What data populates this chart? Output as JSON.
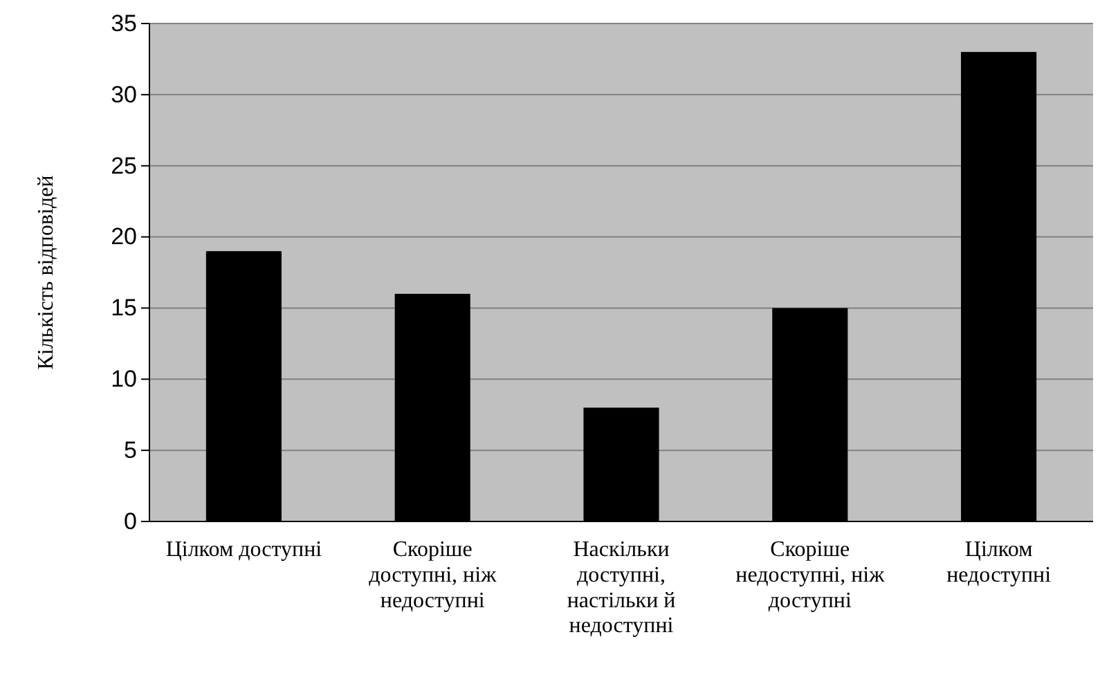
{
  "chart_data": {
    "type": "bar",
    "ylabel": "Кількість відповідей",
    "categories": [
      "Цілком доступні",
      "Скоріше доступні, ніж недоступні",
      "Наскільки доступні, настільки й недоступні",
      "Скоріше недоступні, ніж доступні",
      "Цілком недоступні"
    ],
    "values": [
      19,
      16,
      8,
      15,
      33
    ],
    "color": "#000000",
    "ylim": [
      0,
      35
    ],
    "yticks": [
      0,
      5,
      10,
      15,
      20,
      25,
      30,
      35
    ],
    "grid": "y"
  }
}
